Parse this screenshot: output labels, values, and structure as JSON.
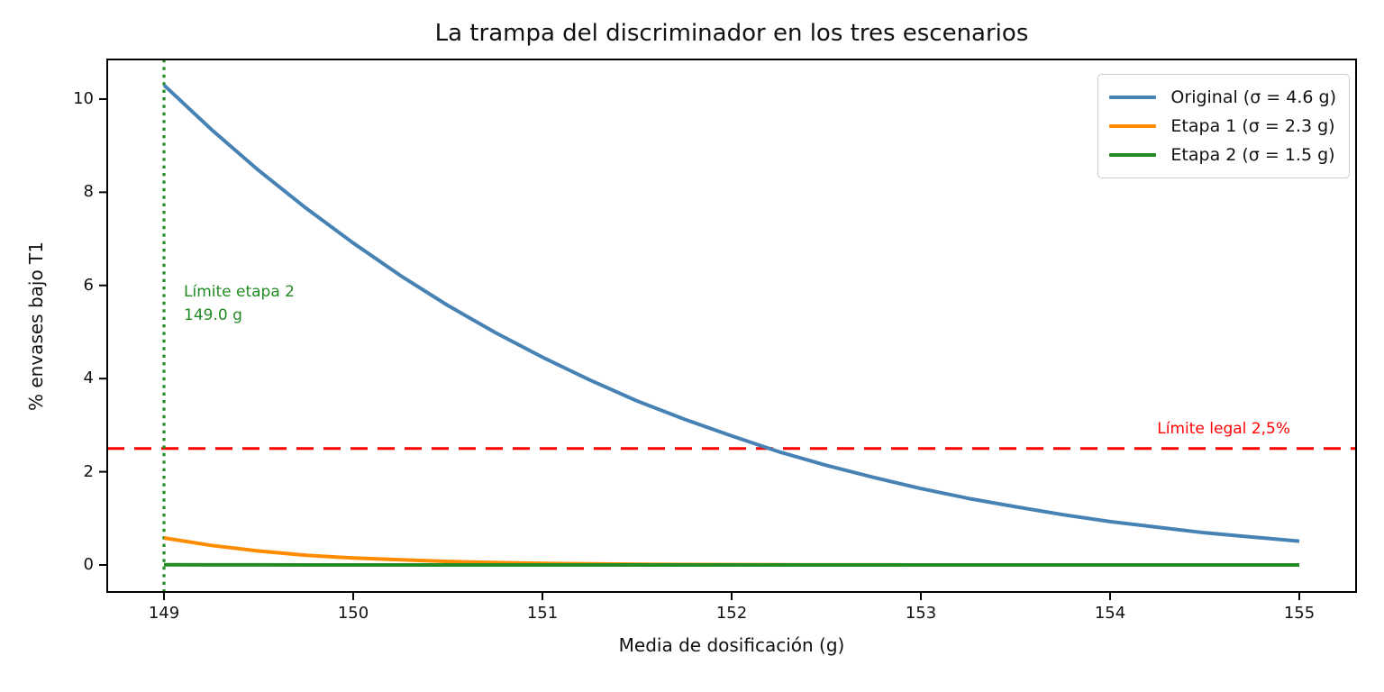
{
  "chart_data": {
    "type": "line",
    "title": "La trampa del discriminador en los tres escenarios",
    "xlabel": "Media de dosificación (g)",
    "ylabel": "% envases bajo T1",
    "xlim": [
      148.7,
      155.3
    ],
    "ylim": [
      -0.58,
      10.85
    ],
    "xticks": [
      149,
      150,
      151,
      152,
      153,
      154,
      155
    ],
    "yticks": [
      0,
      2,
      4,
      6,
      8,
      10
    ],
    "grid": false,
    "legend_position": "upper right",
    "x": [
      149,
      149.25,
      149.5,
      149.75,
      150,
      150.25,
      150.5,
      150.75,
      151,
      151.25,
      151.5,
      151.75,
      152,
      152.25,
      152.5,
      152.75,
      153,
      153.25,
      153.5,
      153.75,
      154,
      154.25,
      154.5,
      154.75,
      155
    ],
    "series": [
      {
        "name": "Original (σ = 4.6 g)",
        "color": "#4682b4",
        "values": [
          10.3,
          9.35,
          8.47,
          7.66,
          6.91,
          6.21,
          5.57,
          4.99,
          4.46,
          3.97,
          3.52,
          3.13,
          2.77,
          2.43,
          2.14,
          1.88,
          1.64,
          1.43,
          1.25,
          1.08,
          0.93,
          0.81,
          0.69,
          0.6,
          0.51
        ]
      },
      {
        "name": "Etapa 1 (σ = 2.3 g)",
        "color": "#ff8c00",
        "values": [
          0.58,
          0.42,
          0.3,
          0.21,
          0.15,
          0.11,
          0.075,
          0.05,
          0.035,
          0.023,
          0.015,
          0.01,
          0.007,
          0.005,
          0.003,
          0.002,
          0.001,
          0.001,
          0.001,
          0,
          0,
          0,
          0,
          0,
          0
        ]
      },
      {
        "name": "Etapa 2 (σ = 1.5 g)",
        "color": "#228b22",
        "values": [
          0.005,
          0.003,
          0.002,
          0.001,
          0.001,
          0,
          0,
          0,
          0,
          0,
          0,
          0,
          0,
          0,
          0,
          0,
          0,
          0,
          0,
          0,
          0,
          0,
          0,
          0,
          0
        ]
      }
    ],
    "reference_lines": {
      "horizontal": {
        "value": 2.5,
        "color": "#ff0000",
        "style": "dashed",
        "label": "Límite legal 2,5%"
      },
      "vertical": {
        "value": 149.0,
        "color": "#228b22",
        "style": "dotted",
        "label_line1": "Límite etapa 2",
        "label_line2": "149.0 g"
      }
    }
  }
}
